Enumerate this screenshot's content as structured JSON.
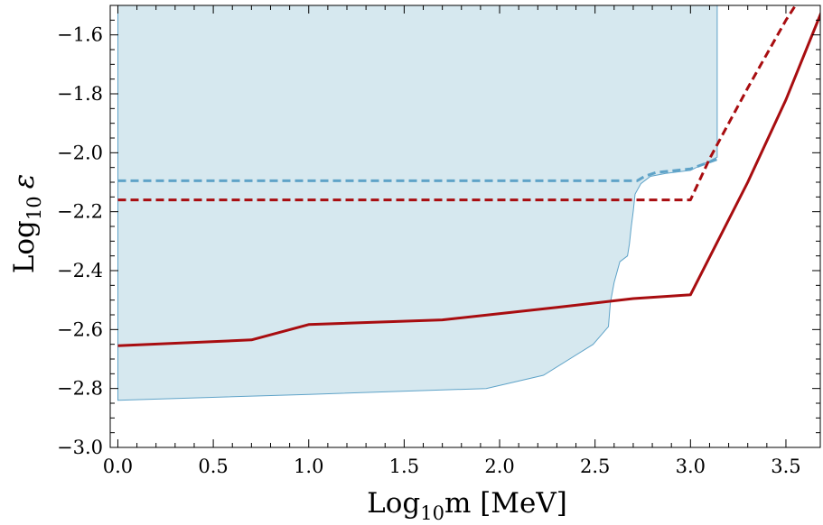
{
  "chart_data": {
    "type": "line",
    "xlabel_main": "Log",
    "xlabel_sub": "10",
    "xlabel_rest": "m [MeV]",
    "ylabel_main": "Log",
    "ylabel_sub": "10",
    "ylabel_rest": "ε",
    "xlim": [
      -0.04,
      3.68
    ],
    "ylim": [
      -3.0,
      -1.5
    ],
    "x_ticks": [
      0.0,
      0.5,
      1.0,
      1.5,
      2.0,
      2.5,
      3.0,
      3.5
    ],
    "x_tick_labels": [
      "0.0",
      "0.5",
      "1.0",
      "1.5",
      "2.0",
      "2.5",
      "3.0",
      "3.5"
    ],
    "y_ticks": [
      -3.0,
      -2.8,
      -2.6,
      -2.4,
      -2.2,
      -2.0,
      -1.8,
      -1.6
    ],
    "y_tick_labels": [
      "−3.0",
      "−2.8",
      "−2.6",
      "−2.4",
      "−2.2",
      "−2.0",
      "−1.8",
      "−1.6"
    ],
    "grid": false,
    "series": [
      {
        "style": "filled-region",
        "color": "#d6e8ef",
        "edge_color": "#5fa3c8",
        "x": [
          0.0,
          1.0,
          1.93,
          2.23,
          2.49,
          2.57,
          2.58,
          2.6,
          2.63,
          2.67,
          2.68,
          2.69,
          2.7,
          2.71,
          2.74,
          2.79,
          2.87,
          3.0,
          3.14,
          3.14,
          0.0
        ],
        "y": [
          -2.84,
          -2.82,
          -2.8,
          -2.755,
          -2.65,
          -2.59,
          -2.51,
          -2.44,
          -2.37,
          -2.35,
          -2.31,
          -2.25,
          -2.2,
          -2.14,
          -2.105,
          -2.08,
          -2.07,
          -2.06,
          -2.015,
          -1.5,
          -1.5
        ]
      },
      {
        "style": "dashed",
        "color": "#5fa3c8",
        "x": [
          0.0,
          2.72,
          2.76,
          2.82,
          3.0,
          3.14
        ],
        "y": [
          -2.095,
          -2.095,
          -2.08,
          -2.067,
          -2.055,
          -2.022
        ]
      },
      {
        "style": "dashed",
        "color": "#a80d10",
        "x": [
          0.0,
          3.0,
          3.1,
          3.3,
          3.5,
          3.55
        ],
        "y": [
          -2.16,
          -2.16,
          -2.02,
          -1.78,
          -1.55,
          -1.5
        ]
      },
      {
        "style": "solid",
        "color": "#a80d10",
        "x": [
          0.0,
          0.7,
          1.0,
          1.7,
          2.3,
          2.7,
          3.0,
          3.3,
          3.5,
          3.7
        ],
        "y": [
          -2.655,
          -2.635,
          -2.583,
          -2.567,
          -2.525,
          -2.495,
          -2.482,
          -2.1,
          -1.82,
          -1.5
        ]
      }
    ]
  }
}
